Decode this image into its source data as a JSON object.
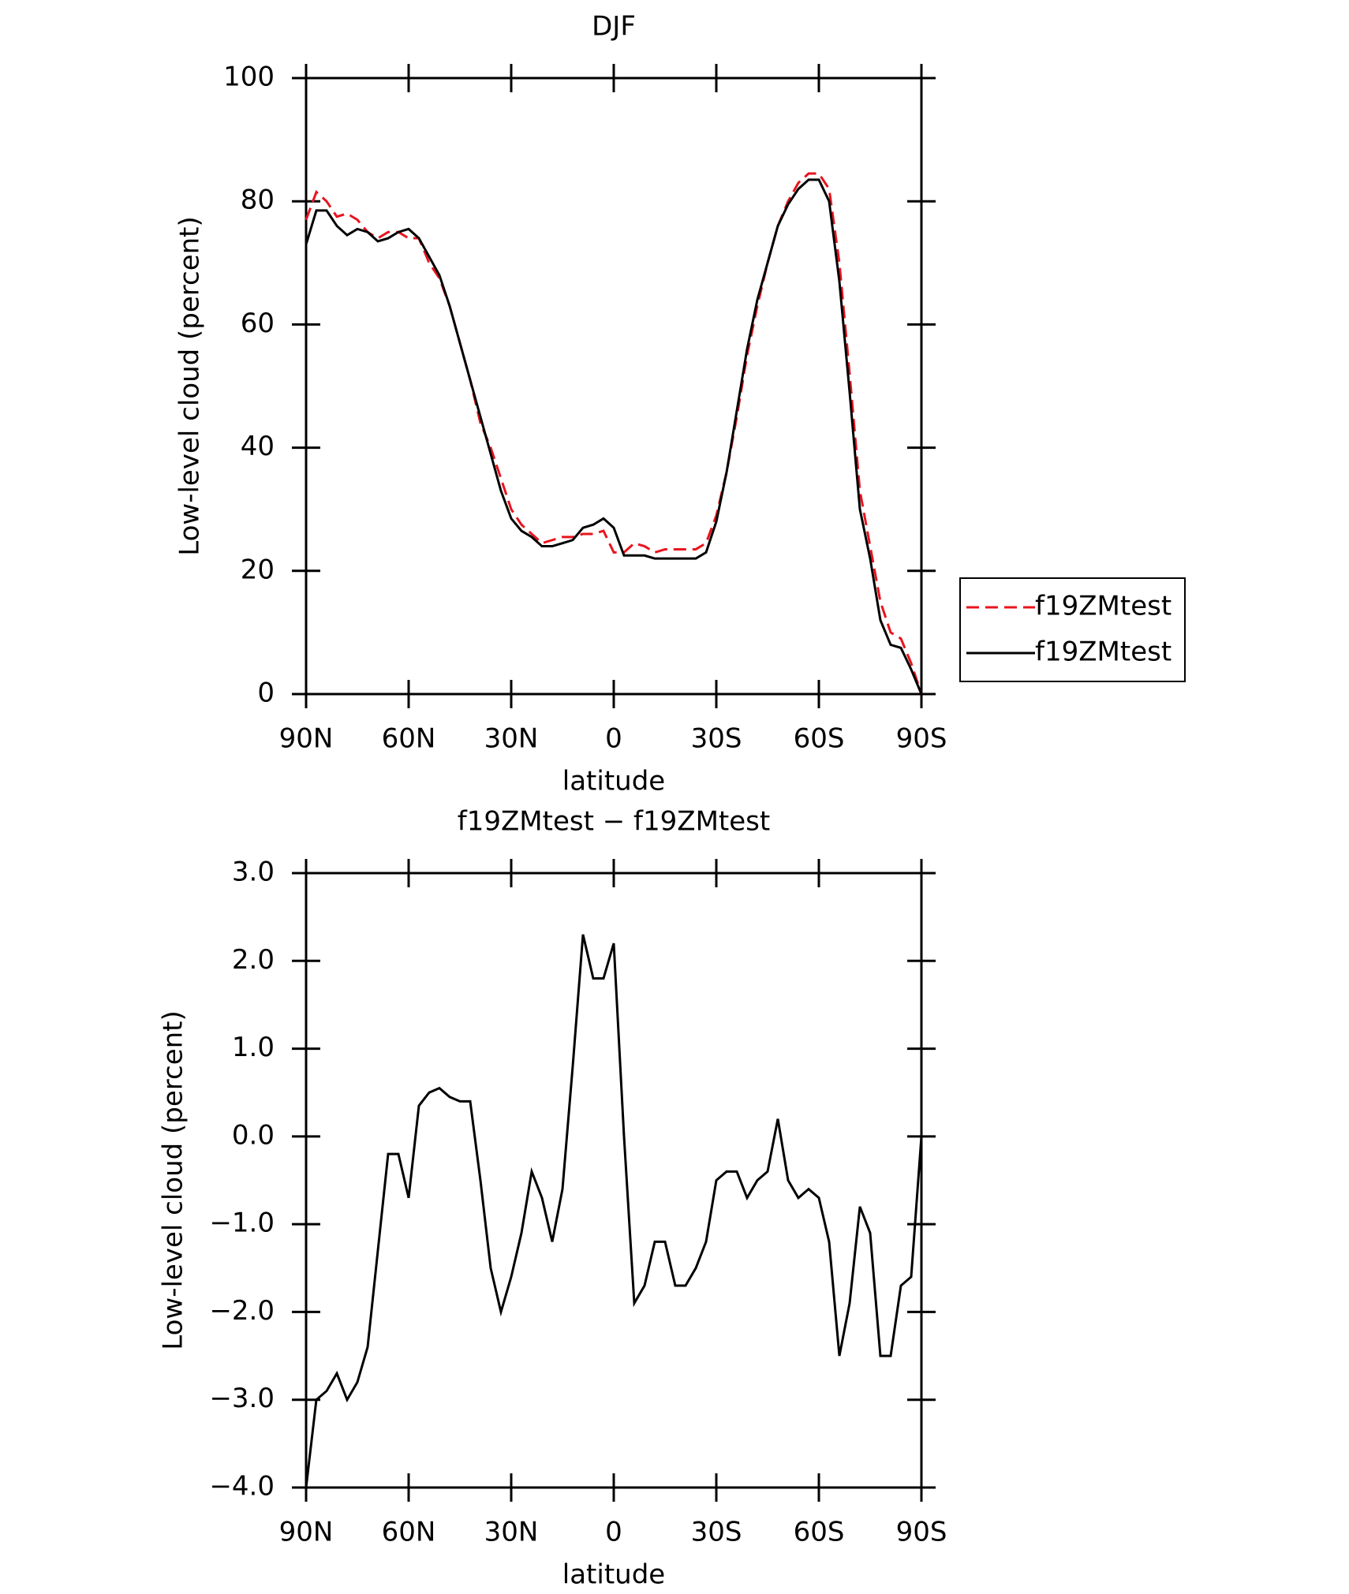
{
  "chart_data": [
    {
      "type": "line",
      "title": "DJF",
      "xlabel": "latitude",
      "ylabel": "Low-level cloud (percent)",
      "x": [
        90,
        87,
        84,
        81,
        78,
        75,
        72,
        69,
        66,
        63,
        60,
        57,
        54,
        51,
        48,
        45,
        42,
        39,
        36,
        33,
        30,
        27,
        24,
        21,
        18,
        15,
        12,
        9,
        6,
        3,
        0,
        -3,
        -6,
        -9,
        -12,
        -15,
        -18,
        -21,
        -24,
        -27,
        -30,
        -33,
        -36,
        -39,
        -42,
        -45,
        -48,
        -51,
        -54,
        -57,
        -60,
        -63,
        -66,
        -69,
        -72,
        -75,
        -78,
        -81,
        -84,
        -87,
        -90
      ],
      "series": [
        {
          "name": "f19ZMtest",
          "color": "#e8141e",
          "dash": true,
          "values": [
            77,
            81.5,
            80,
            77.5,
            78,
            77,
            75,
            74,
            75,
            75,
            74,
            74,
            70,
            67.5,
            63,
            57,
            51,
            44,
            40,
            35,
            30,
            27.5,
            26,
            24.5,
            25,
            25.5,
            25.5,
            26,
            26,
            26.5,
            23,
            23,
            24.5,
            24,
            23,
            23.5,
            23.5,
            23.5,
            23.5,
            24.5,
            29,
            36,
            45,
            55,
            63,
            70,
            76,
            80,
            83,
            84.5,
            84.5,
            82,
            70,
            52,
            33,
            24,
            15,
            10,
            9,
            5,
            0
          ]
        },
        {
          "name": "f19ZMtest",
          "color": "#000000",
          "dash": false,
          "values": [
            73,
            78.5,
            78.5,
            76,
            74.5,
            75.5,
            75,
            73.5,
            74,
            75,
            75.5,
            74,
            71,
            68,
            63,
            57,
            51,
            45,
            39,
            33,
            28.5,
            26.5,
            25.5,
            24,
            24,
            24.5,
            25,
            27,
            27.5,
            28.5,
            27,
            22.5,
            22.5,
            22.5,
            22,
            22,
            22,
            22,
            22,
            23,
            28,
            36,
            46,
            56,
            64,
            70,
            76,
            79.5,
            82,
            83.5,
            83.5,
            80,
            67,
            49,
            30,
            22,
            12,
            8,
            7.5,
            4,
            0
          ]
        }
      ],
      "xlim": [
        90,
        -90
      ],
      "xticks": [
        {
          "value": 90,
          "label": "90N"
        },
        {
          "value": 60,
          "label": "60N"
        },
        {
          "value": 30,
          "label": "30N"
        },
        0,
        {
          "value": -30,
          "label": "30S"
        },
        {
          "value": -60,
          "label": "60S"
        },
        {
          "value": -90,
          "label": "90S"
        }
      ],
      "ylim": [
        0,
        100
      ],
      "yticks": [
        0,
        20,
        40,
        60,
        80,
        100
      ],
      "legend": "right"
    },
    {
      "type": "line",
      "title": "f19ZMtest − f19ZMtest",
      "xlabel": "latitude",
      "ylabel": "Low-level cloud (percent)",
      "x": [
        90,
        87,
        84,
        81,
        78,
        75,
        72,
        69,
        66,
        63,
        60,
        57,
        54,
        51,
        48,
        45,
        42,
        39,
        36,
        33,
        30,
        27,
        24,
        21,
        18,
        15,
        12,
        9,
        6,
        3,
        0,
        -3,
        -6,
        -9,
        -12,
        -15,
        -18,
        -21,
        -24,
        -27,
        -30,
        -33,
        -36,
        -39,
        -42,
        -45,
        -48,
        -51,
        -54,
        -57,
        -60,
        -63,
        -66,
        -69,
        -72,
        -75,
        -78,
        -81,
        -84,
        -87,
        -90
      ],
      "values": [
        -4.0,
        -3.0,
        -2.9,
        -2.7,
        -3.0,
        -2.8,
        -2.4,
        -1.3,
        -0.2,
        -0.2,
        -0.7,
        0.35,
        0.5,
        0.55,
        0.45,
        0.4,
        0.4,
        -0.5,
        -1.5,
        -2.0,
        -1.6,
        -1.1,
        -0.4,
        -0.7,
        -1.2,
        -0.6,
        0.8,
        2.3,
        1.8,
        1.8,
        2.2,
        0.0,
        -1.9,
        -1.7,
        -1.2,
        -1.2,
        -1.7,
        -1.7,
        -1.5,
        -1.2,
        -0.5,
        -0.4,
        -0.4,
        -0.7,
        -0.5,
        -0.4,
        0.2,
        -0.5,
        -0.7,
        -0.6,
        -0.7,
        -1.2,
        -2.5,
        -1.9,
        -0.8,
        -1.1,
        -2.5,
        -2.5,
        -1.7,
        -1.6,
        0.0
      ],
      "color": "#000000",
      "xlim": [
        90,
        -90
      ],
      "xticks": [
        {
          "value": 90,
          "label": "90N"
        },
        {
          "value": 60,
          "label": "60N"
        },
        {
          "value": 30,
          "label": "30N"
        },
        0,
        {
          "value": -30,
          "label": "30S"
        },
        {
          "value": -60,
          "label": "60S"
        },
        {
          "value": -90,
          "label": "90S"
        }
      ],
      "ylim": [
        -4,
        3
      ],
      "yticks": [
        {
          "value": -4,
          "label": "−4.0"
        },
        {
          "value": -3,
          "label": "−3.0"
        },
        {
          "value": -2,
          "label": "−2.0"
        },
        {
          "value": -1,
          "label": "−1.0"
        },
        {
          "value": 0,
          "label": "0.0"
        },
        {
          "value": 1,
          "label": "1.0"
        },
        {
          "value": 2,
          "label": "2.0"
        },
        {
          "value": 3,
          "label": "3.0"
        }
      ]
    }
  ]
}
